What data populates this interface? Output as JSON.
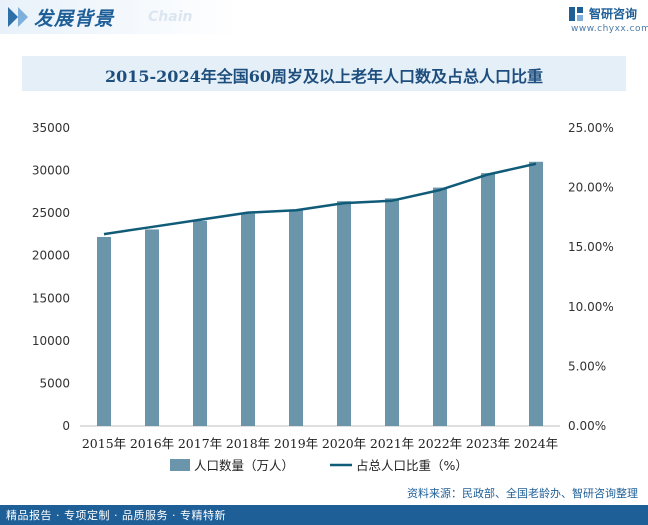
{
  "header": {
    "section_title": "发展背景",
    "section_subtitle": "Chain",
    "brand_name": "智研咨询",
    "brand_url": "www.chyxx.com"
  },
  "chart_data": {
    "type": "bar+line",
    "title": "2015-2024年全国60周岁及以上老年人口数及占总人口比重",
    "categories": [
      "2015年",
      "2016年",
      "2017年",
      "2018年",
      "2019年",
      "2020年",
      "2021年",
      "2022年",
      "2023年",
      "2024年"
    ],
    "series": [
      {
        "name": "人口数量（万人）",
        "type": "bar",
        "axis": "left",
        "values": [
          22200,
          23086,
          24090,
          24949,
          25388,
          26402,
          26736,
          28004,
          29697,
          31031
        ]
      },
      {
        "name": "占总人口比重（%）",
        "type": "line",
        "axis": "right",
        "values": [
          16.1,
          16.7,
          17.3,
          17.9,
          18.1,
          18.7,
          18.9,
          19.8,
          21.1,
          22.0
        ]
      }
    ],
    "left_axis": {
      "min": 0,
      "max": 35000,
      "ticks": [
        "0",
        "5000",
        "10000",
        "15000",
        "20000",
        "25000",
        "30000",
        "35000"
      ]
    },
    "right_axis": {
      "min": 0,
      "max": 25,
      "ticks": [
        "0.00%",
        "5.00%",
        "10.00%",
        "15.00%",
        "20.00%",
        "25.00%"
      ]
    },
    "grid": false,
    "legend_position": "bottom",
    "colors": {
      "bar": "#6a95ab",
      "line": "#0f5b78"
    }
  },
  "source": "资料来源：民政部、全国老龄办、智研咨询整理",
  "footer": "精品报告 · 专项定制 · 品质服务 · 专精特新"
}
